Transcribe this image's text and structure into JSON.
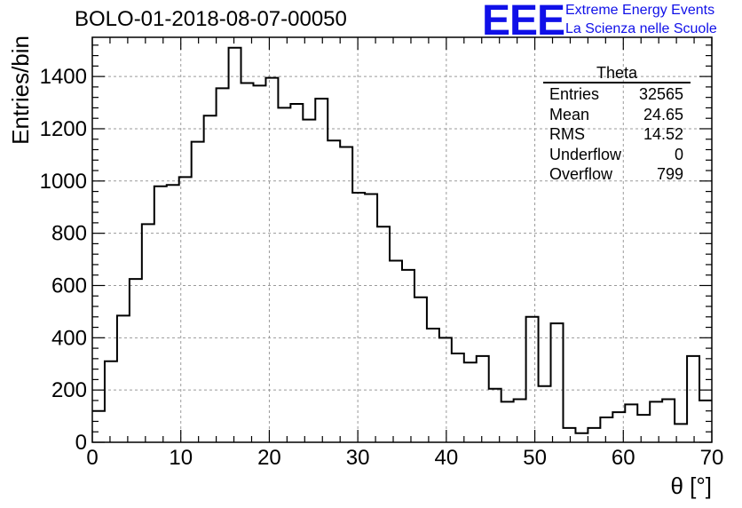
{
  "title": "BOLO-01-2018-08-07-00050",
  "logo": {
    "mark": "EEE",
    "line1": "Extreme Energy Events",
    "line2": "La Scienza nelle Scuole",
    "color": "#1010e8"
  },
  "stats": {
    "title": "Theta",
    "rows": [
      {
        "label": "Entries",
        "value": "32565"
      },
      {
        "label": "Mean",
        "value": "24.65"
      },
      {
        "label": "RMS",
        "value": "14.52"
      },
      {
        "label": "Underflow",
        "value": "0"
      },
      {
        "label": "Overflow",
        "value": "799"
      }
    ]
  },
  "chart_data": {
    "type": "histogram",
    "xlabel": "θ [°]",
    "ylabel": "Entries/bin",
    "xlim": [
      0,
      70
    ],
    "ylim": [
      0,
      1550
    ],
    "bin_width": 1.4,
    "x_ticks": [
      0,
      10,
      20,
      30,
      40,
      50,
      60,
      70
    ],
    "y_ticks": [
      0,
      200,
      400,
      600,
      800,
      1000,
      1200,
      1400
    ],
    "grid": true,
    "line_color": "#000000",
    "values": [
      120,
      310,
      485,
      625,
      835,
      980,
      985,
      1015,
      1150,
      1250,
      1355,
      1510,
      1375,
      1365,
      1395,
      1280,
      1295,
      1235,
      1315,
      1155,
      1130,
      955,
      950,
      825,
      695,
      660,
      555,
      435,
      400,
      340,
      305,
      330,
      205,
      155,
      165,
      480,
      215,
      455,
      55,
      35,
      55,
      95,
      115,
      145,
      105,
      155,
      165,
      70,
      330,
      160
    ]
  }
}
